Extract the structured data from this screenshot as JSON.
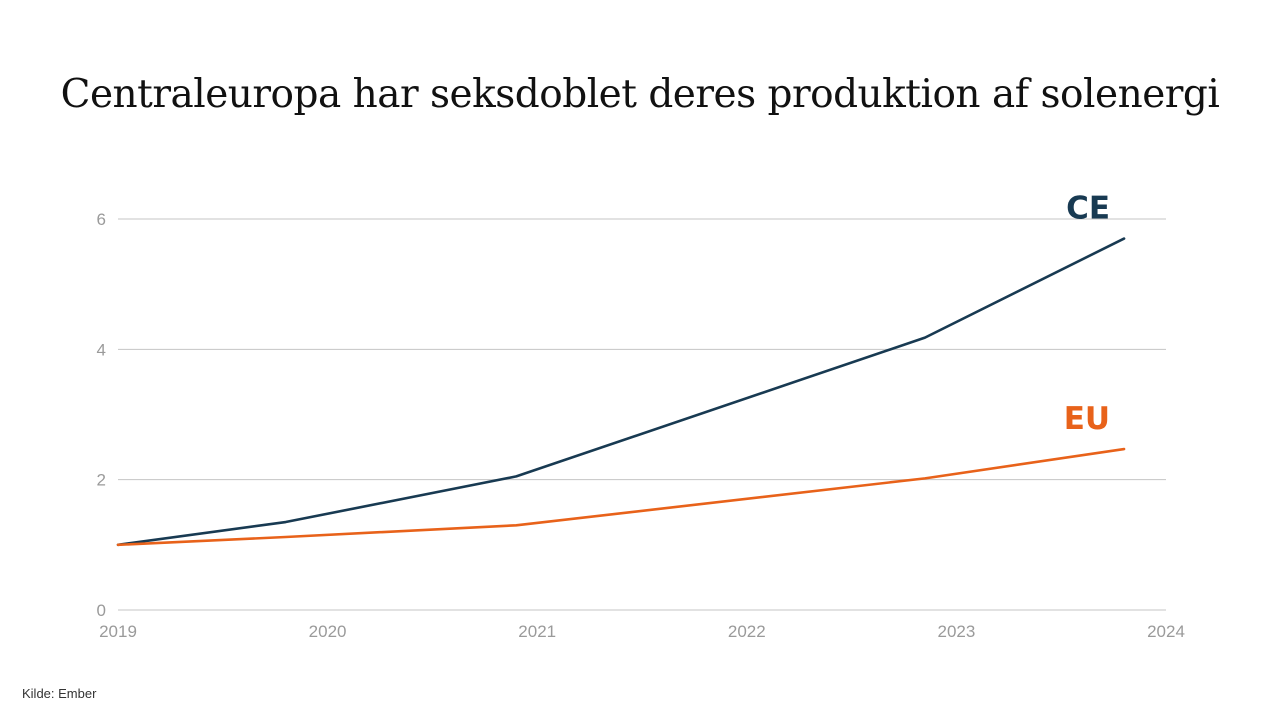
{
  "title": "Centraleuropa har seksdoblet deres produktion af solenergi",
  "source": "Kilde: Ember",
  "colors": {
    "CE": "#183a52",
    "EU": "#e8621a",
    "grid": "#c4c4c4",
    "ticks": "#9a9a9a"
  },
  "chart_data": {
    "type": "line",
    "title": "Centraleuropa har seksdoblet deres produktion af solenergi",
    "xlabel": "",
    "ylabel": "",
    "x": [
      2019,
      2019.8,
      2020.9,
      2022.85,
      2023.8
    ],
    "x_ticks": [
      "2019",
      "2020",
      "2021",
      "2022",
      "2023",
      "2024"
    ],
    "y_ticks": [
      "0",
      "2",
      "4",
      "6"
    ],
    "xlim": [
      2019,
      2024
    ],
    "ylim": [
      0,
      6
    ],
    "grid": true,
    "series": [
      {
        "name": "CE",
        "values": [
          1.0,
          1.35,
          2.05,
          4.18,
          5.7
        ]
      },
      {
        "name": "EU",
        "values": [
          1.0,
          1.12,
          1.3,
          2.02,
          2.47
        ]
      }
    ]
  }
}
